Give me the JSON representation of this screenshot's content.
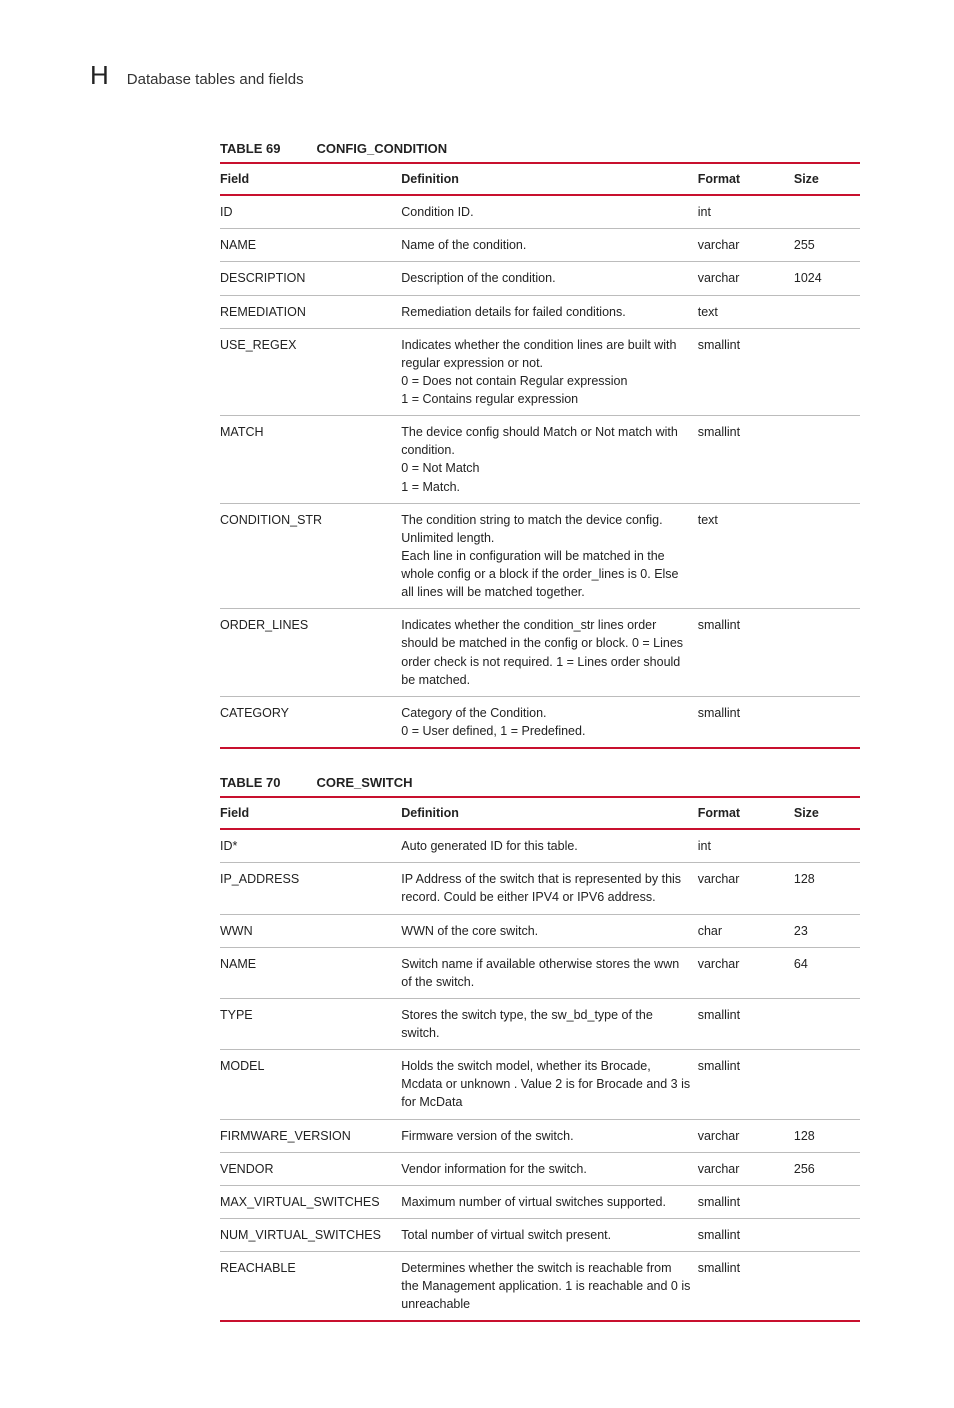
{
  "header": {
    "appendix_letter": "H",
    "section_title": "Database tables and fields"
  },
  "accent_color": "#c8102e",
  "tables": [
    {
      "caption_num": "TABLE 69",
      "caption_name": "CONFIG_CONDITION",
      "columns": [
        "Field",
        "Definition",
        "Format",
        "Size"
      ],
      "rows": [
        {
          "field": "ID",
          "definition": [
            "Condition ID."
          ],
          "format": "int",
          "size": ""
        },
        {
          "field": "NAME",
          "definition": [
            "Name of the condition."
          ],
          "format": "varchar",
          "size": "255"
        },
        {
          "field": "DESCRIPTION",
          "definition": [
            "Description of the condition."
          ],
          "format": "varchar",
          "size": "1024"
        },
        {
          "field": "REMEDIATION",
          "definition": [
            "Remediation details for failed conditions."
          ],
          "format": "text",
          "size": ""
        },
        {
          "field": "USE_REGEX",
          "definition": [
            "Indicates whether the condition lines are built with regular expression or not.",
            "0 = Does not contain Regular expression",
            "1 = Contains regular expression"
          ],
          "format": "smallint",
          "size": ""
        },
        {
          "field": "MATCH",
          "definition": [
            "The device config should Match or Not match with condition.",
            "0 = Not Match",
            "1 = Match."
          ],
          "format": "smallint",
          "size": ""
        },
        {
          "field": "CONDITION_STR",
          "definition": [
            "The condition string to match the device config. Unlimited length.",
            "Each line in configuration will be matched in the whole config or a block if the order_lines is 0. Else all lines will be matched together."
          ],
          "format": "text",
          "size": ""
        },
        {
          "field": "ORDER_LINES",
          "definition": [
            "Indicates whether the condition_str lines order should be matched in the config or block. 0 = Lines order check is not required. 1 = Lines order should be matched."
          ],
          "format": "smallint",
          "size": ""
        },
        {
          "field": "CATEGORY",
          "definition": [
            "Category of the Condition.",
            "0 = User defined, 1 = Predefined."
          ],
          "format": "smallint",
          "size": ""
        }
      ]
    },
    {
      "caption_num": "TABLE 70",
      "caption_name": "CORE_SWITCH",
      "columns": [
        "Field",
        "Definition",
        "Format",
        "Size"
      ],
      "rows": [
        {
          "field": "ID*",
          "definition": [
            "Auto generated ID for this table."
          ],
          "format": "int",
          "size": ""
        },
        {
          "field": "IP_ADDRESS",
          "definition": [
            "IP Address of the switch that is represented by this record. Could be either IPV4 or IPV6 address."
          ],
          "format": "varchar",
          "size": "128"
        },
        {
          "field": "WWN",
          "definition": [
            "WWN of the core switch."
          ],
          "format": "char",
          "size": "23"
        },
        {
          "field": "NAME",
          "definition": [
            "Switch name if available otherwise stores the wwn of the switch."
          ],
          "format": "varchar",
          "size": "64"
        },
        {
          "field": "TYPE",
          "definition": [
            "Stores the switch type, the sw_bd_type of the switch."
          ],
          "format": "smallint",
          "size": ""
        },
        {
          "field": "MODEL",
          "definition": [
            "Holds the switch model, whether its Brocade, Mcdata or unknown . Value 2 is for Brocade and 3 is for McData"
          ],
          "format": "smallint",
          "size": ""
        },
        {
          "field": "FIRMWARE_VERSION",
          "definition": [
            "Firmware version of the switch."
          ],
          "format": "varchar",
          "size": "128"
        },
        {
          "field": "VENDOR",
          "definition": [
            "Vendor information for the switch."
          ],
          "format": "varchar",
          "size": "256"
        },
        {
          "field": "MAX_VIRTUAL_SWITCHES",
          "definition": [
            "Maximum number of virtual switches supported."
          ],
          "format": "smallint",
          "size": ""
        },
        {
          "field": "NUM_VIRTUAL_SWITCHES",
          "definition": [
            "Total number of virtual switch present."
          ],
          "format": "smallint",
          "size": ""
        },
        {
          "field": "REACHABLE",
          "definition": [
            "Determines whether the switch is reachable from the Management application. 1 is reachable and 0 is unreachable"
          ],
          "format": "smallint",
          "size": ""
        }
      ]
    }
  ]
}
